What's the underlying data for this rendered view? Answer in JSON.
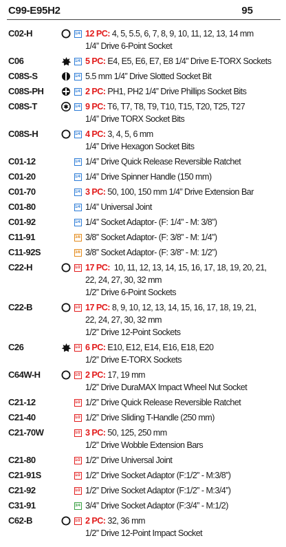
{
  "header": {
    "code": "C99-E95H2",
    "page": "95"
  },
  "rows": [
    {
      "code": "C02-H",
      "sym": "circle-outline",
      "drive": "1/4",
      "pc": "12 PC:",
      "line1": " 4, 5, 5.5, 6, 7, 8, 9, 10, 11, 12, 13, 14 mm",
      "line2": "1/4” Drive 6-Point Socket"
    },
    {
      "code": "C06",
      "sym": "star",
      "drive": "1/4",
      "pc": "5 PC:",
      "line1": " E4, E5, E6, E7, E8 1/4” Drive E-TORX Sockets",
      "line2": ""
    },
    {
      "code": "C08S-S",
      "sym": "slotted",
      "drive": "1/4",
      "pc": "",
      "line1": "5.5 mm 1/4” Drive Slotted Socket Bit",
      "line2": ""
    },
    {
      "code": "C08S-PH",
      "sym": "phillips",
      "drive": "1/4",
      "pc": "2 PC:",
      "line1": " PH1, PH2 1/4” Drive Phillips Socket Bits",
      "line2": ""
    },
    {
      "code": "C08S-T",
      "sym": "torx",
      "drive": "1/4",
      "pc": "9 PC:",
      "line1": " T6, T7, T8, T9, T10, T15, T20, T25, T27",
      "line2": "1/4” Drive TORX Socket Bits"
    },
    {
      "code": "C08S-H",
      "sym": "circle-outline",
      "drive": "1/4",
      "pc": "4 PC:",
      "line1": " 3, 4, 5, 6 mm",
      "line2": "1/4” Drive Hexagon Socket Bits"
    },
    {
      "code": "C01-12",
      "sym": "",
      "drive": "1/4",
      "pc": "",
      "line1": "1/4” Drive Quick Release Reversible Ratchet",
      "line2": ""
    },
    {
      "code": "C01-20",
      "sym": "",
      "drive": "1/4",
      "pc": "",
      "line1": "1/4” Drive Spinner Handle (150 mm)",
      "line2": ""
    },
    {
      "code": "C01-70",
      "sym": "",
      "drive": "1/4",
      "pc": "3 PC:",
      "line1": " 50, 100, 150 mm 1/4” Drive Extension Bar",
      "line2": ""
    },
    {
      "code": "C01-80",
      "sym": "",
      "drive": "1/4",
      "pc": "",
      "line1": "1/4” Universal Joint",
      "line2": ""
    },
    {
      "code": "C01-92",
      "sym": "",
      "drive": "1/4",
      "pc": "",
      "line1": "1/4” Socket Adaptor- (F: 1/4” - M: 3/8”)",
      "line2": ""
    },
    {
      "code": "C11-91",
      "sym": "",
      "drive": "3/8",
      "pc": "",
      "line1": "3/8” Socket Adaptor- (F: 3/8” - M: 1/4”)",
      "line2": ""
    },
    {
      "code": "C11-92S",
      "sym": "",
      "drive": "3/8",
      "pc": "",
      "line1": "3/8” Socket Adaptor- (F: 3/8” - M: 1/2”)",
      "line2": ""
    },
    {
      "code": "C22-H",
      "sym": "circle-outline",
      "drive": "1/2",
      "pc": "17 PC:",
      "line1": "  10, 11, 12, 13, 14, 15, 16, 17, 18, 19, 20, 21,",
      "line2": "22, 24, 27, 30, 32  mm",
      "line3": "1/2” Drive 6-Point Sockets"
    },
    {
      "code": "C22-B",
      "sym": "circle-outline",
      "drive": "1/2",
      "pc": "17 PC:",
      "line1": " 8, 9, 10, 12, 13, 14, 15, 16, 17, 18, 19, 21,",
      "line2": "22, 24, 27, 30, 32  mm",
      "line3": "1/2” Drive 12-Point Sockets"
    },
    {
      "code": "C26",
      "sym": "star",
      "drive": "1/2",
      "pc": "6 PC:",
      "line1": " E10, E12, E14, E16, E18, E20",
      "line2": "1/2” Drive E-TORX Sockets"
    },
    {
      "code": "C64W-H",
      "sym": "circle-outline",
      "drive": "1/2",
      "pc": "2 PC:",
      "line1": " 17, 19 mm",
      "line2": "1/2” Drive DuraMAX Impact Wheel Nut Socket"
    },
    {
      "code": "C21-12",
      "sym": "",
      "drive": "1/2",
      "pc": "",
      "line1": "1/2” Drive Quick Release Reversible Ratchet",
      "line2": ""
    },
    {
      "code": "C21-40",
      "sym": "",
      "drive": "1/2",
      "pc": "",
      "line1": "1/2” Drive Sliding T-Handle (250 mm)",
      "line2": ""
    },
    {
      "code": "C21-70W",
      "sym": "",
      "drive": "1/2",
      "pc": "3 PC:",
      "line1": " 50, 125, 250 mm",
      "line2": "1/2” Drive Wobble Extension Bars"
    },
    {
      "code": "C21-80",
      "sym": "",
      "drive": "1/2",
      "pc": "",
      "line1": "1/2” Drive Universal Joint",
      "line2": ""
    },
    {
      "code": "C21-91S",
      "sym": "",
      "drive": "1/2",
      "pc": "",
      "line1": "1/2” Drive Socket Adaptor (F:1/2” - M:3/8”)",
      "line2": ""
    },
    {
      "code": "C21-92",
      "sym": "",
      "drive": "1/2",
      "pc": "",
      "line1": "1/2” Drive Socket Adaptor (F:1/2” - M:3/4”)",
      "line2": ""
    },
    {
      "code": "C31-91",
      "sym": "",
      "drive": "3/4",
      "pc": "",
      "line1": "3/4” Drive Socket Adaptor (F:3/4” - M:1/2)",
      "line2": ""
    },
    {
      "code": "C62-B",
      "sym": "circle-outline",
      "drive": "1/2",
      "pc": "2 PC:",
      "line1": " 32, 36 mm",
      "line2": "1/2” Drive 12-Point Impact Socket"
    }
  ],
  "colors": {
    "pc": "#e21b1b",
    "drive_1_4": "#2b7bd6",
    "drive_3_8": "#e38a1a",
    "drive_1_2": "#e21b1b",
    "drive_3_4": "#3aa043"
  }
}
